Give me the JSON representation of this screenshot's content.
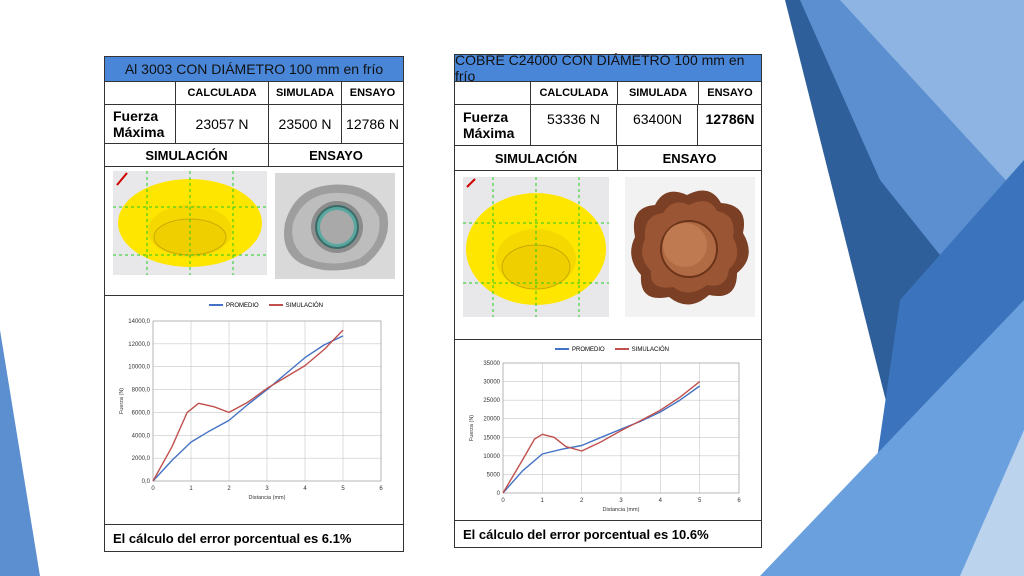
{
  "theme": {
    "accent": "#4a86d8",
    "series_promedio": "#4472c4",
    "series_simulacion": "#c0504d",
    "simulation_fill": "#ffe600",
    "copper": "#8b4a2e"
  },
  "panels": [
    {
      "title": "Al 3003 CON DIÁMETRO 100 mm en frío",
      "headers": [
        "CALCULADA",
        "SIMULADA",
        "ENSAYO"
      ],
      "row_label": "Fuerza Máxima",
      "values": [
        "23057 N",
        "23500 N",
        "12786 N"
      ],
      "section_labels": [
        "SIMULACIÓN",
        "ENSAYO"
      ],
      "footer": "El cálculo del error porcentual es 6.1%"
    },
    {
      "title": "COBRE C24000 CON DIÁMETRO 100 mm en frío",
      "headers": [
        "CALCULADA",
        "SIMULADA",
        "ENSAYO"
      ],
      "row_label": "Fuerza Máxima",
      "values": [
        "53336 N",
        "63400N",
        "12786N"
      ],
      "section_labels": [
        "SIMULACIÓN",
        "ENSAYO"
      ],
      "footer": "El cálculo del error porcentual es 10.6%"
    }
  ],
  "chart_data": [
    {
      "type": "line",
      "xlabel": "Distancia (mm)",
      "ylabel": "Fuerza (N)",
      "xlim": [
        0,
        6
      ],
      "ylim": [
        0,
        14000
      ],
      "x_ticks": [
        "0",
        "1",
        "2",
        "3",
        "4",
        "5",
        "6"
      ],
      "y_ticks": [
        "0,0",
        "2000,0",
        "4000,0",
        "6000,0",
        "8000,0",
        "10000,0",
        "12000,0",
        "14000,0"
      ],
      "legend": [
        "PROMEDIO",
        "SIMULACIÓN"
      ],
      "grid": true,
      "series": [
        {
          "name": "PROMEDIO",
          "x": [
            0,
            0.5,
            1,
            1.5,
            2,
            2.5,
            3,
            3.5,
            4,
            4.5,
            5
          ],
          "y": [
            0,
            1800,
            3400,
            4400,
            5300,
            6700,
            8000,
            9400,
            10800,
            11900,
            12700
          ]
        },
        {
          "name": "SIMULACIÓN",
          "x": [
            0,
            0.5,
            0.9,
            1.2,
            1.6,
            2,
            2.5,
            3,
            3.5,
            4,
            4.5,
            5
          ],
          "y": [
            0,
            3000,
            6000,
            6800,
            6500,
            6000,
            6900,
            8100,
            9100,
            10100,
            11500,
            13200
          ]
        }
      ]
    },
    {
      "type": "line",
      "xlabel": "Distancia (mm)",
      "ylabel": "Fuerza (N)",
      "xlim": [
        0,
        6
      ],
      "ylim": [
        0,
        35000
      ],
      "x_ticks": [
        "0",
        "1",
        "2",
        "3",
        "4",
        "5",
        "6"
      ],
      "y_ticks": [
        "0",
        "5000",
        "10000",
        "15000",
        "20000",
        "25000",
        "30000",
        "35000"
      ],
      "legend": [
        "PROMEDIO",
        "SIMULACIÓN"
      ],
      "grid": true,
      "series": [
        {
          "name": "PROMEDIO",
          "x": [
            0,
            0.5,
            1,
            1.5,
            2,
            2.5,
            3,
            3.5,
            4,
            4.5,
            5
          ],
          "y": [
            0,
            6000,
            10500,
            11800,
            12800,
            15000,
            17200,
            19300,
            21800,
            25000,
            28800
          ]
        },
        {
          "name": "SIMULACIÓN",
          "x": [
            0,
            0.5,
            0.8,
            1,
            1.3,
            1.6,
            2,
            2.5,
            3,
            3.5,
            4,
            4.5,
            5
          ],
          "y": [
            0,
            9000,
            14500,
            15800,
            15000,
            12500,
            11300,
            13800,
            16800,
            19500,
            22300,
            25800,
            30000
          ]
        }
      ]
    }
  ]
}
